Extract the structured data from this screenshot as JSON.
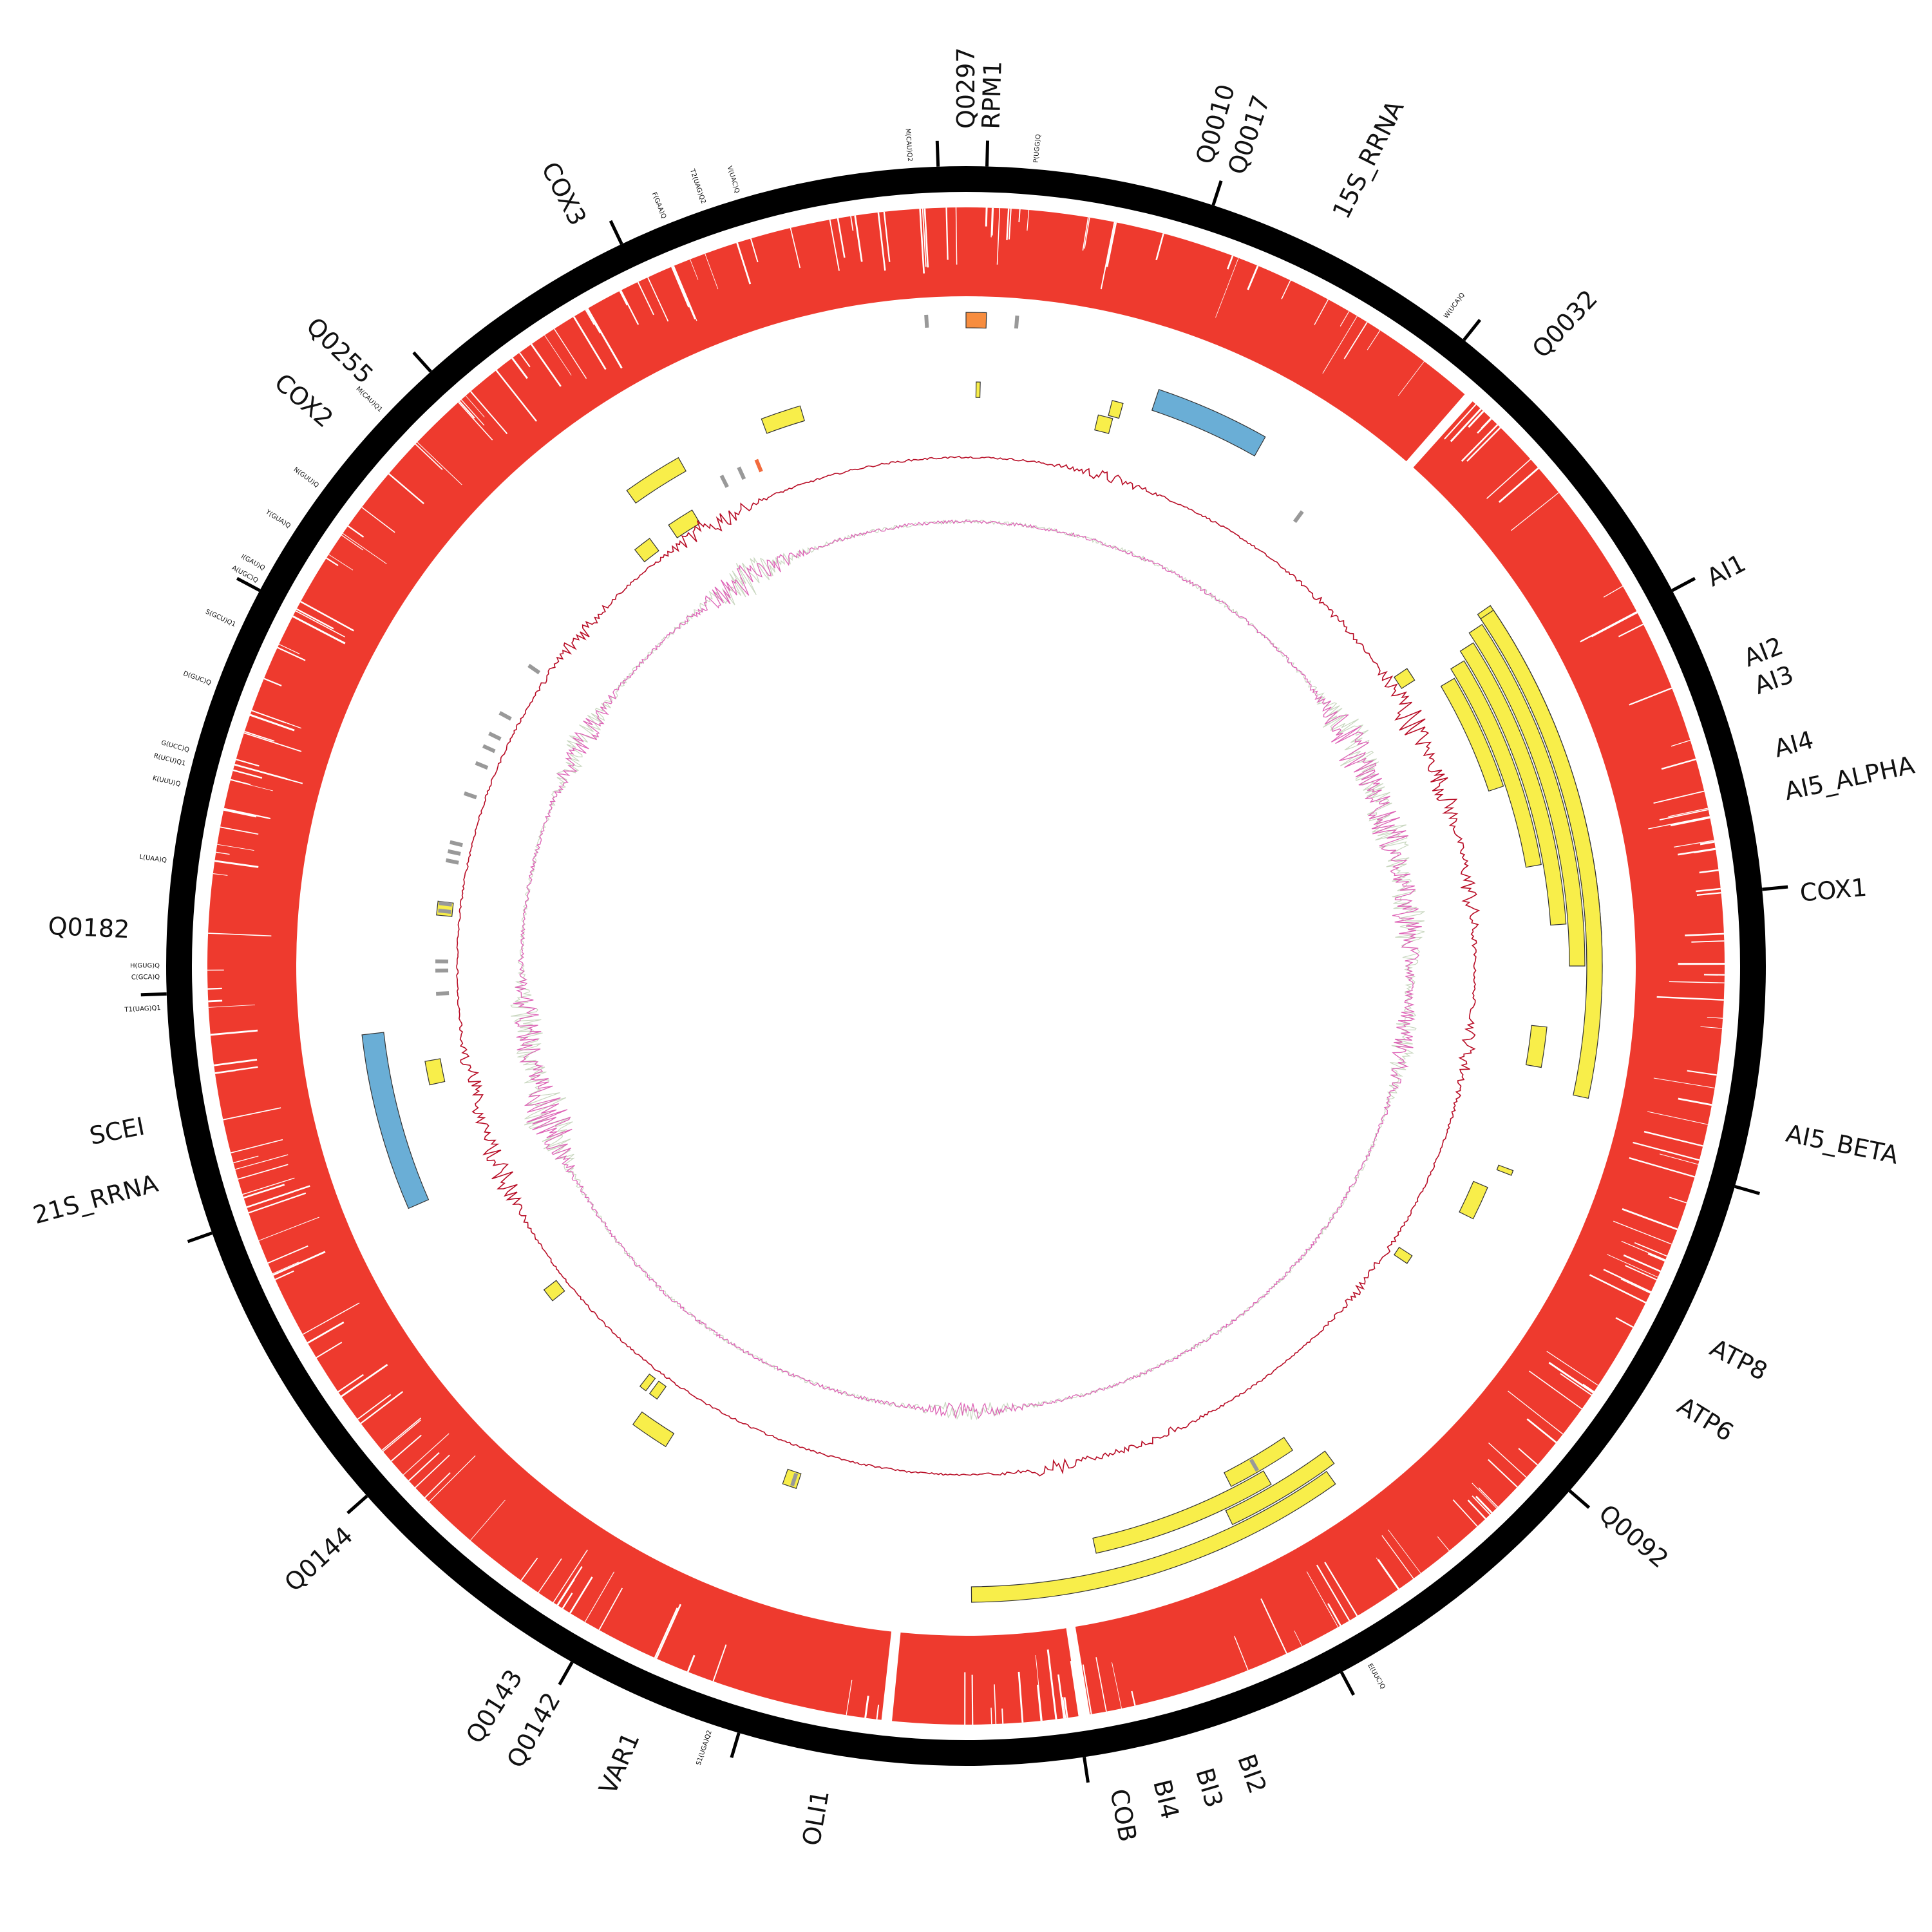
{
  "genes": [
    {
      "label": "Q0297",
      "angle": 0.0
    },
    {
      "label": "RPM1",
      "angle": 1.7
    },
    {
      "label": "Q0010",
      "angle": 16.5
    },
    {
      "label": "Q0017",
      "angle": 18.8
    },
    {
      "label": "15S_RRNA",
      "angle": 26.5
    },
    {
      "label": "Q0032",
      "angle": 43.0
    },
    {
      "label": "AI1",
      "angle": 62.5
    },
    {
      "label": "AI2",
      "angle": 68.5
    },
    {
      "label": "AI3",
      "angle": 70.5
    },
    {
      "label": "AI4",
      "angle": 75.0
    },
    {
      "label": "AI5_ALPHA",
      "angle": 78.0
    },
    {
      "label": "COX1",
      "angle": 85.0
    },
    {
      "label": "AI5_BETA",
      "angle": 101.5
    },
    {
      "label": "ATP8",
      "angle": 117.0
    },
    {
      "label": "ATP6",
      "angle": 121.5
    },
    {
      "label": "Q0092",
      "angle": 130.5
    },
    {
      "label": "BI2",
      "angle": 160.5
    },
    {
      "label": "BI3",
      "angle": 163.5
    },
    {
      "label": "BI4",
      "angle": 166.5
    },
    {
      "label": "COB",
      "angle": 169.5
    },
    {
      "label": "OLI1",
      "angle": 190.0
    },
    {
      "label": "VAR1",
      "angle": 203.5
    },
    {
      "label": "Q0142",
      "angle": 209.5
    },
    {
      "label": "Q0143",
      "angle": 212.5
    },
    {
      "label": "Q0144",
      "angle": 227.5
    },
    {
      "label": "21S_RRNA",
      "angle": 255.0
    },
    {
      "label": "SCEI",
      "angle": 259.0
    },
    {
      "label": "Q0182",
      "angle": 272.5
    },
    {
      "label": "COX2",
      "angle": 310.5
    },
    {
      "label": "Q0255",
      "angle": 314.5
    },
    {
      "label": "COX3",
      "angle": 332.5
    }
  ],
  "trnas": [
    {
      "label": "M(CAU)Q2",
      "angle": 356.0
    },
    {
      "label": "P(UGG)Q",
      "angle": 5.0
    },
    {
      "label": "W(UCA)Q",
      "angle": 36.5
    },
    {
      "label": "E(UUC)Q",
      "angle": 150.0
    },
    {
      "label": "S1(UGA)Q2",
      "angle": 198.5
    },
    {
      "label": "T1(UAG)Q1",
      "angle": 267.0
    },
    {
      "label": "C(GCA)Q",
      "angle": 269.2
    },
    {
      "label": "H(GUG)Q",
      "angle": 270.0
    },
    {
      "label": "L(UAA)Q",
      "angle": 277.5
    },
    {
      "label": "K(UUU)Q",
      "angle": 283.0
    },
    {
      "label": "R(UCU)Q1",
      "angle": 284.5
    },
    {
      "label": "G(UCC)Q",
      "angle": 285.5
    },
    {
      "label": "D(GUC)Q",
      "angle": 290.5
    },
    {
      "label": "S(GCU)Q1",
      "angle": 295.0
    },
    {
      "label": "A(UGC)Q",
      "angle": 298.5
    },
    {
      "label": "I(GAU)Q",
      "angle": 299.5
    },
    {
      "label": "Y(GUA)Q",
      "angle": 303.0
    },
    {
      "label": "N(GUU)Q",
      "angle": 306.5
    },
    {
      "label": "M(CAU)Q1",
      "angle": 313.5
    },
    {
      "label": "F(GAA)Q",
      "angle": 338.0
    },
    {
      "label": "T2(UAG)Q2",
      "angle": 341.0
    },
    {
      "label": "V(UAC)Q",
      "angle": 343.5
    }
  ],
  "ticks": [
    1.5,
    18.0,
    38.5,
    62.0,
    84.5,
    106.0,
    131.0,
    152.0,
    171.5,
    196.5,
    209.5,
    228.5,
    250.5,
    268.0,
    298.0,
    318.0,
    334.5,
    358.0
  ],
  "red_gaps": [
    41.5,
    171.0,
    186.0
  ],
  "features": [
    {
      "kind": "rrna",
      "start": 18.5,
      "end": 29.5,
      "level": 3
    },
    {
      "kind": "rrna",
      "start": 246.5,
      "end": 263.5,
      "level": 3
    },
    {
      "kind": "orf",
      "start": 55.5,
      "end": 92.5,
      "level": 1
    },
    {
      "kind": "orf",
      "start": 56.0,
      "end": 102.0,
      "level": 1
    },
    {
      "kind": "orf",
      "start": 56.5,
      "end": 90.0,
      "level": 2
    },
    {
      "kind": "orf",
      "start": 57.5,
      "end": 86.0,
      "level": 3
    },
    {
      "kind": "orf",
      "start": 58.5,
      "end": 80.0,
      "level": 4
    },
    {
      "kind": "orf",
      "start": 59.5,
      "end": 71.5,
      "level": 5
    },
    {
      "kind": "orf",
      "start": 143.5,
      "end": 154.5,
      "level": 2
    },
    {
      "kind": "orf",
      "start": 149.5,
      "end": 167.5,
      "level": 3
    },
    {
      "kind": "orf",
      "start": 144.5,
      "end": 179.5,
      "level": 1
    },
    {
      "kind": "orf",
      "start": 146.0,
      "end": 153.0,
      "level": 4
    },
    {
      "kind": "orf",
      "start": 1.0,
      "end": 1.4,
      "level": 4
    },
    {
      "kind": "orf",
      "start": 14.5,
      "end": 15.6,
      "level": 4
    },
    {
      "kind": "orf",
      "start": 13.5,
      "end": 15.0,
      "level": 5
    },
    {
      "kind": "orf",
      "start": 56.0,
      "end": 57.5,
      "level": 7
    },
    {
      "kind": "orf",
      "start": 96.0,
      "end": 100.0,
      "level": 4
    },
    {
      "kind": "orf",
      "start": 110.5,
      "end": 111.0,
      "level": 4
    },
    {
      "kind": "orf",
      "start": 113.0,
      "end": 116.5,
      "level": 5
    },
    {
      "kind": "orf",
      "start": 123.0,
      "end": 124.0,
      "level": 7
    },
    {
      "kind": "orf",
      "start": 198.0,
      "end": 199.5,
      "level": 6
    },
    {
      "kind": "orf",
      "start": 212.0,
      "end": 216.0,
      "level": 5
    },
    {
      "kind": "orf",
      "start": 215.5,
      "end": 216.5,
      "level": 7
    },
    {
      "kind": "orf",
      "start": 217.0,
      "end": 217.8,
      "level": 7
    },
    {
      "kind": "orf",
      "start": 231.0,
      "end": 232.5,
      "level": 7
    },
    {
      "kind": "orf",
      "start": 257.5,
      "end": 260.0,
      "level": 6
    },
    {
      "kind": "orf",
      "start": 275.5,
      "end": 277.0,
      "level": 7
    },
    {
      "kind": "orf",
      "start": 321.5,
      "end": 323.5,
      "level": 7
    },
    {
      "kind": "orf",
      "start": 324.5,
      "end": 330.5,
      "level": 4
    },
    {
      "kind": "orf",
      "start": 339.5,
      "end": 343.5,
      "level": 4
    },
    {
      "kind": "orf",
      "start": 326.0,
      "end": 329.0,
      "level": 7
    },
    {
      "kind": "orf",
      "start": 0.0,
      "end": 1.8,
      "level": 0
    },
    {
      "kind": "trna",
      "angle": 356.5,
      "level": 0
    },
    {
      "kind": "trna",
      "angle": 4.5,
      "level": 0
    },
    {
      "kind": "trna",
      "angle": 36.5,
      "level": 5
    },
    {
      "kind": "trna",
      "angle": 150.0,
      "level": 4
    },
    {
      "kind": "trna",
      "angle": 198.5,
      "level": 6
    },
    {
      "kind": "trna",
      "angle": 267.0,
      "level": 7
    },
    {
      "kind": "trna",
      "angle": 269.5,
      "level": 7
    },
    {
      "kind": "trna",
      "angle": 270.5,
      "level": 7
    },
    {
      "kind": "trna",
      "angle": 276.0,
      "level": 7
    },
    {
      "kind": "trna",
      "angle": 276.8,
      "level": 7
    },
    {
      "kind": "trna",
      "angle": 281.5,
      "level": 7
    },
    {
      "kind": "trna",
      "angle": 282.5,
      "level": 7
    },
    {
      "kind": "trna",
      "angle": 283.5,
      "level": 7
    },
    {
      "kind": "trna",
      "angle": 289.0,
      "level": 7
    },
    {
      "kind": "trna",
      "angle": 292.5,
      "level": 7
    },
    {
      "kind": "trna",
      "angle": 294.5,
      "level": 7
    },
    {
      "kind": "trna",
      "angle": 296.0,
      "level": 7
    },
    {
      "kind": "trna",
      "angle": 298.5,
      "level": 7
    },
    {
      "kind": "trna",
      "angle": 304.5,
      "level": 7
    },
    {
      "kind": "trna",
      "angle": 333.5,
      "level": 6
    },
    {
      "kind": "trna",
      "angle": 335.5,
      "level": 6
    },
    {
      "kind": "trna_hi",
      "angle": 337.5,
      "level": 6
    }
  ],
  "colors": {
    "backbone": "#000000",
    "coverage": "#ee3a2e",
    "orf": "#f8ee4a",
    "rrna": "#6aaed6",
    "trna": "#999999",
    "trna_hi": "#f26b3d",
    "orf_hi": "#f78d3f",
    "gc_skew": "#b80d26",
    "at_skew": "#dd63b6",
    "at_skew_faint": "#c9d7c0"
  }
}
